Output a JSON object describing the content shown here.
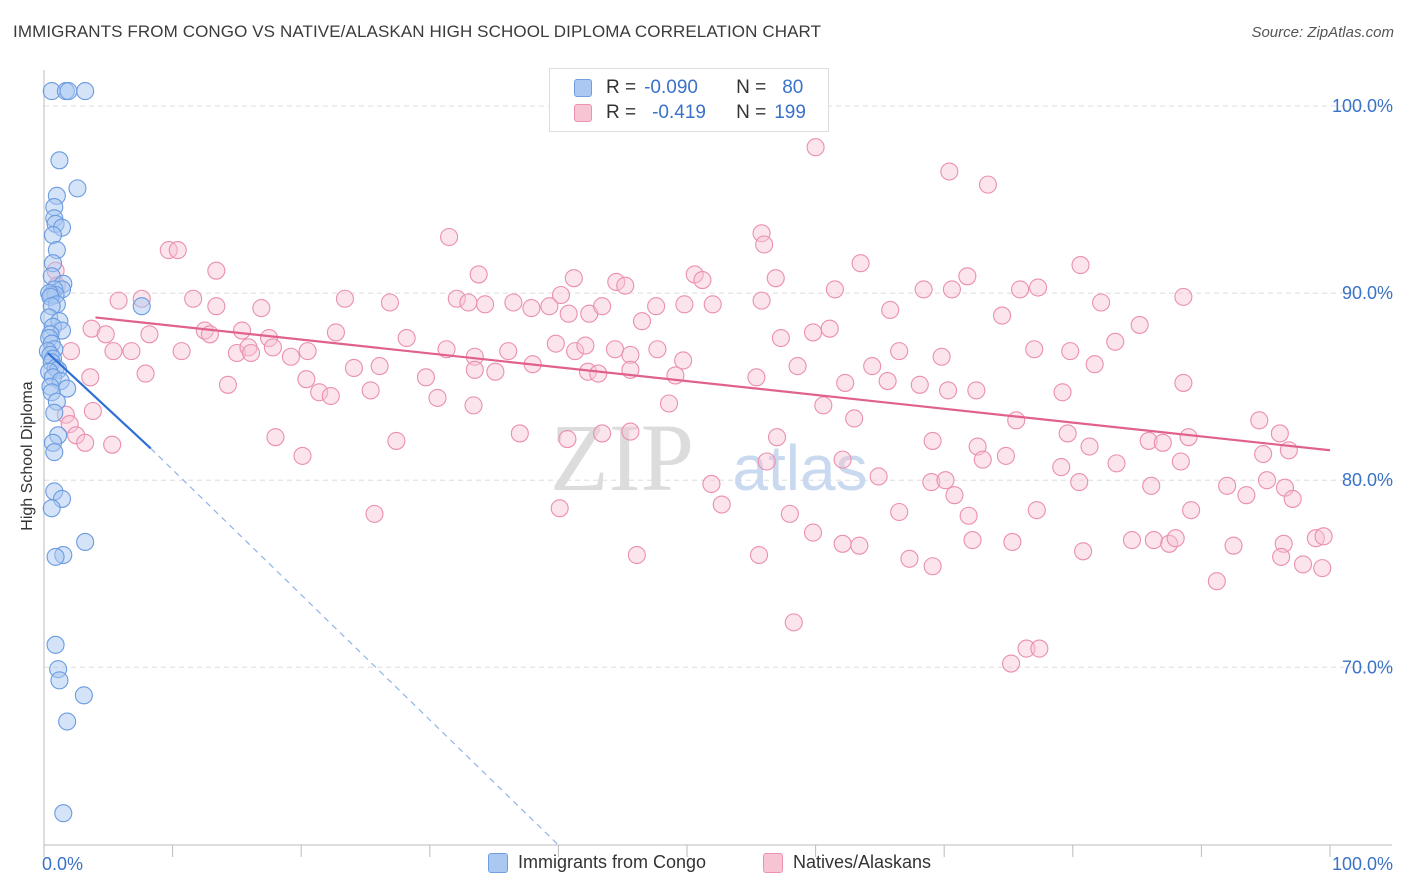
{
  "title": "IMMIGRANTS FROM CONGO VS NATIVE/ALASKAN HIGH SCHOOL DIPLOMA CORRELATION CHART",
  "source": "Source: ZipAtlas.com",
  "watermark": {
    "zip": "ZIP",
    "atlas": "atlas"
  },
  "legend": {
    "r_label": "R =",
    "n_label": "N =",
    "rows": [
      {
        "name": "Immigrants from Congo",
        "r": "-0.090",
        "n": "80",
        "fill": "#aac8f2",
        "stroke": "#6f9fe0"
      },
      {
        "name": "Natives/Alaskans",
        "r": "-0.419",
        "n": "199",
        "fill": "#f7c4d4",
        "stroke": "#ee92b1"
      }
    ]
  },
  "colors": {
    "blue_fill": "#aac8f2",
    "blue_stroke": "#6a9be0",
    "blue_line": "#2f6fd6",
    "pink_fill": "#f7c4d4",
    "pink_stroke": "#eb8fae",
    "pink_line": "#e0608e",
    "axis_text": "#3a72c9",
    "grid": "#dddddd"
  },
  "chart_data": {
    "type": "scatter",
    "title": "IMMIGRANTS FROM CONGO VS NATIVE/ALASKAN HIGH SCHOOL DIPLOMA CORRELATION CHART",
    "xlabel": "",
    "ylabel": "High School Diploma",
    "xlim": [
      0,
      100
    ],
    "ylim": [
      60.5,
      101.5
    ],
    "x_tick_labels": [
      "0.0%",
      "100.0%"
    ],
    "y_ticks": [
      {
        "value": 100,
        "label": "100.0%"
      },
      {
        "value": 90,
        "label": "90.0%"
      },
      {
        "value": 80,
        "label": "80.0%"
      },
      {
        "value": 70,
        "label": "70.0%"
      }
    ],
    "grid": true,
    "series": [
      {
        "name": "Immigrants from Congo",
        "trend": {
          "x0": 0.3,
          "y0": 86.8,
          "x1": 8.3,
          "y1": 81.7,
          "dash_to_x": 40,
          "dash_to_y": 60.5
        },
        "points": [
          [
            0.6,
            100.8
          ],
          [
            3.2,
            100.8
          ],
          [
            1.7,
            100.8
          ],
          [
            1.9,
            100.8
          ],
          [
            1.2,
            97.1
          ],
          [
            2.6,
            95.6
          ],
          [
            1.0,
            95.2
          ],
          [
            0.8,
            94.6
          ],
          [
            0.8,
            94.0
          ],
          [
            0.9,
            93.7
          ],
          [
            1.4,
            93.5
          ],
          [
            0.7,
            93.1
          ],
          [
            1.0,
            92.3
          ],
          [
            0.7,
            91.6
          ],
          [
            0.6,
            90.9
          ],
          [
            1.5,
            90.5
          ],
          [
            1.4,
            90.2
          ],
          [
            0.8,
            90.2
          ],
          [
            0.6,
            89.9
          ],
          [
            0.9,
            89.9
          ],
          [
            0.4,
            90.0
          ],
          [
            0.5,
            89.8
          ],
          [
            1.0,
            89.4
          ],
          [
            7.6,
            89.3
          ],
          [
            0.6,
            89.3
          ],
          [
            0.4,
            88.7
          ],
          [
            1.2,
            88.5
          ],
          [
            0.7,
            88.2
          ],
          [
            1.4,
            88.0
          ],
          [
            0.5,
            87.8
          ],
          [
            0.4,
            87.6
          ],
          [
            0.6,
            87.3
          ],
          [
            0.8,
            87.0
          ],
          [
            0.3,
            86.9
          ],
          [
            0.5,
            86.7
          ],
          [
            0.7,
            86.5
          ],
          [
            0.6,
            86.3
          ],
          [
            0.9,
            86.0
          ],
          [
            1.1,
            85.9
          ],
          [
            0.4,
            85.8
          ],
          [
            0.7,
            85.5
          ],
          [
            1.3,
            85.3
          ],
          [
            0.5,
            85.0
          ],
          [
            1.8,
            84.9
          ],
          [
            0.6,
            84.7
          ],
          [
            1.0,
            84.2
          ],
          [
            0.8,
            83.6
          ],
          [
            1.1,
            82.4
          ],
          [
            0.7,
            82.0
          ],
          [
            0.8,
            81.5
          ],
          [
            0.8,
            79.4
          ],
          [
            1.4,
            79.0
          ],
          [
            0.6,
            78.5
          ],
          [
            3.2,
            76.7
          ],
          [
            1.5,
            76.0
          ],
          [
            0.9,
            75.9
          ],
          [
            0.9,
            71.2
          ],
          [
            1.1,
            69.9
          ],
          [
            1.2,
            69.3
          ],
          [
            3.1,
            68.5
          ],
          [
            1.8,
            67.1
          ],
          [
            1.5,
            62.2
          ]
        ]
      },
      {
        "name": "Natives/Alaskans",
        "trend": {
          "x0": 4,
          "y0": 88.7,
          "x1": 100,
          "y1": 81.6
        },
        "points": [
          [
            60.0,
            97.8
          ],
          [
            70.4,
            96.5
          ],
          [
            73.4,
            95.8
          ],
          [
            31.5,
            93.0
          ],
          [
            55.8,
            93.2
          ],
          [
            56.0,
            92.6
          ],
          [
            9.7,
            92.3
          ],
          [
            10.4,
            92.3
          ],
          [
            63.5,
            91.6
          ],
          [
            33.8,
            91.0
          ],
          [
            50.6,
            91.0
          ],
          [
            80.6,
            91.5
          ],
          [
            13.4,
            91.2
          ],
          [
            0.9,
            91.2
          ],
          [
            1.0,
            90.4
          ],
          [
            56.9,
            90.8
          ],
          [
            51.2,
            90.7
          ],
          [
            41.2,
            90.8
          ],
          [
            44.5,
            90.6
          ],
          [
            45.2,
            90.4
          ],
          [
            40.2,
            89.9
          ],
          [
            61.5,
            90.2
          ],
          [
            68.4,
            90.2
          ],
          [
            70.6,
            90.2
          ],
          [
            71.8,
            90.9
          ],
          [
            75.9,
            90.2
          ],
          [
            77.3,
            90.3
          ],
          [
            88.6,
            89.8
          ],
          [
            55.8,
            89.6
          ],
          [
            49.8,
            89.4
          ],
          [
            5.8,
            89.6
          ],
          [
            7.6,
            89.7
          ],
          [
            11.6,
            89.7
          ],
          [
            13.4,
            89.3
          ],
          [
            16.9,
            89.2
          ],
          [
            23.4,
            89.7
          ],
          [
            26.9,
            89.5
          ],
          [
            32.1,
            89.7
          ],
          [
            33.0,
            89.5
          ],
          [
            34.3,
            89.4
          ],
          [
            36.5,
            89.5
          ],
          [
            37.9,
            89.2
          ],
          [
            39.3,
            89.3
          ],
          [
            40.8,
            88.9
          ],
          [
            42.4,
            88.9
          ],
          [
            43.4,
            89.3
          ],
          [
            46.5,
            88.5
          ],
          [
            47.6,
            89.3
          ],
          [
            52.0,
            89.4
          ],
          [
            65.8,
            89.1
          ],
          [
            74.5,
            88.8
          ],
          [
            82.2,
            89.5
          ],
          [
            85.2,
            88.3
          ],
          [
            3.7,
            88.1
          ],
          [
            4.8,
            87.8
          ],
          [
            8.2,
            87.8
          ],
          [
            12.5,
            88.0
          ],
          [
            12.9,
            87.8
          ],
          [
            15.4,
            88.0
          ],
          [
            17.5,
            87.6
          ],
          [
            22.7,
            87.9
          ],
          [
            28.2,
            87.6
          ],
          [
            31.3,
            87.0
          ],
          [
            33.5,
            86.6
          ],
          [
            36.1,
            86.9
          ],
          [
            38.0,
            86.2
          ],
          [
            39.8,
            87.3
          ],
          [
            41.3,
            86.9
          ],
          [
            42.1,
            87.2
          ],
          [
            44.4,
            87.0
          ],
          [
            45.6,
            86.7
          ],
          [
            47.7,
            87.0
          ],
          [
            49.7,
            86.4
          ],
          [
            57.3,
            87.6
          ],
          [
            59.8,
            87.9
          ],
          [
            61.1,
            88.1
          ],
          [
            64.4,
            86.1
          ],
          [
            66.5,
            86.9
          ],
          [
            69.8,
            86.6
          ],
          [
            77.0,
            87.0
          ],
          [
            79.8,
            86.9
          ],
          [
            81.7,
            86.2
          ],
          [
            83.3,
            87.4
          ],
          [
            2.1,
            86.9
          ],
          [
            5.4,
            86.9
          ],
          [
            6.8,
            86.9
          ],
          [
            10.7,
            86.9
          ],
          [
            15.0,
            86.8
          ],
          [
            15.9,
            87.1
          ],
          [
            16.1,
            86.8
          ],
          [
            17.8,
            87.1
          ],
          [
            19.2,
            86.6
          ],
          [
            20.5,
            86.9
          ],
          [
            24.1,
            86.0
          ],
          [
            26.1,
            86.1
          ],
          [
            29.7,
            85.5
          ],
          [
            33.5,
            85.9
          ],
          [
            35.1,
            85.8
          ],
          [
            42.3,
            85.8
          ],
          [
            43.1,
            85.7
          ],
          [
            45.6,
            85.9
          ],
          [
            49.1,
            85.6
          ],
          [
            55.4,
            85.5
          ],
          [
            58.6,
            86.1
          ],
          [
            62.3,
            85.2
          ],
          [
            65.6,
            85.3
          ],
          [
            68.1,
            85.1
          ],
          [
            70.3,
            84.8
          ],
          [
            72.5,
            84.8
          ],
          [
            79.2,
            84.7
          ],
          [
            88.6,
            85.2
          ],
          [
            3.6,
            85.5
          ],
          [
            7.9,
            85.7
          ],
          [
            14.3,
            85.1
          ],
          [
            20.4,
            85.4
          ],
          [
            21.4,
            84.7
          ],
          [
            22.3,
            84.5
          ],
          [
            25.4,
            84.8
          ],
          [
            30.6,
            84.4
          ],
          [
            33.4,
            84.0
          ],
          [
            48.6,
            84.1
          ],
          [
            60.6,
            84.0
          ],
          [
            1.7,
            83.5
          ],
          [
            3.8,
            83.7
          ],
          [
            2.0,
            83.0
          ],
          [
            5.3,
            81.9
          ],
          [
            18.0,
            82.3
          ],
          [
            27.4,
            82.1
          ],
          [
            37.0,
            82.5
          ],
          [
            45.6,
            82.6
          ],
          [
            57.0,
            82.3
          ],
          [
            63.0,
            83.3
          ],
          [
            69.1,
            82.1
          ],
          [
            72.6,
            81.8
          ],
          [
            75.6,
            83.2
          ],
          [
            79.6,
            82.5
          ],
          [
            81.3,
            81.8
          ],
          [
            85.9,
            82.1
          ],
          [
            87.0,
            82.0
          ],
          [
            89.0,
            82.3
          ],
          [
            94.5,
            83.2
          ],
          [
            96.1,
            82.5
          ],
          [
            2.5,
            82.4
          ],
          [
            3.2,
            82.0
          ],
          [
            20.1,
            81.3
          ],
          [
            40.7,
            82.2
          ],
          [
            43.4,
            82.5
          ],
          [
            56.2,
            81.0
          ],
          [
            62.1,
            81.1
          ],
          [
            73.0,
            81.1
          ],
          [
            74.8,
            81.3
          ],
          [
            79.1,
            80.7
          ],
          [
            83.4,
            80.9
          ],
          [
            88.4,
            81.0
          ],
          [
            94.8,
            81.4
          ],
          [
            96.8,
            81.6
          ],
          [
            51.9,
            79.8
          ],
          [
            64.9,
            80.2
          ],
          [
            69.0,
            79.9
          ],
          [
            70.1,
            80.0
          ],
          [
            70.8,
            79.2
          ],
          [
            80.5,
            79.9
          ],
          [
            86.1,
            79.7
          ],
          [
            92.0,
            79.7
          ],
          [
            93.5,
            79.2
          ],
          [
            95.1,
            80.0
          ],
          [
            96.5,
            79.6
          ],
          [
            97.1,
            79.0
          ],
          [
            52.7,
            78.7
          ],
          [
            58.0,
            78.2
          ],
          [
            66.5,
            78.3
          ],
          [
            71.9,
            78.1
          ],
          [
            77.2,
            78.4
          ],
          [
            89.2,
            78.4
          ],
          [
            25.7,
            78.2
          ],
          [
            40.1,
            78.5
          ],
          [
            59.8,
            77.2
          ],
          [
            62.1,
            76.6
          ],
          [
            63.4,
            76.5
          ],
          [
            72.2,
            76.8
          ],
          [
            75.3,
            76.7
          ],
          [
            80.8,
            76.2
          ],
          [
            84.6,
            76.8
          ],
          [
            86.3,
            76.8
          ],
          [
            87.5,
            76.6
          ],
          [
            88.0,
            76.9
          ],
          [
            92.5,
            76.5
          ],
          [
            96.4,
            76.6
          ],
          [
            98.9,
            76.9
          ],
          [
            99.5,
            77.0
          ],
          [
            55.6,
            76.0
          ],
          [
            67.3,
            75.8
          ],
          [
            91.2,
            74.6
          ],
          [
            96.2,
            75.9
          ],
          [
            97.9,
            75.5
          ],
          [
            99.4,
            75.3
          ],
          [
            46.1,
            76.0
          ],
          [
            69.1,
            75.4
          ],
          [
            58.3,
            72.4
          ],
          [
            76.4,
            71.0
          ],
          [
            77.4,
            71.0
          ],
          [
            75.2,
            70.2
          ]
        ]
      }
    ]
  }
}
